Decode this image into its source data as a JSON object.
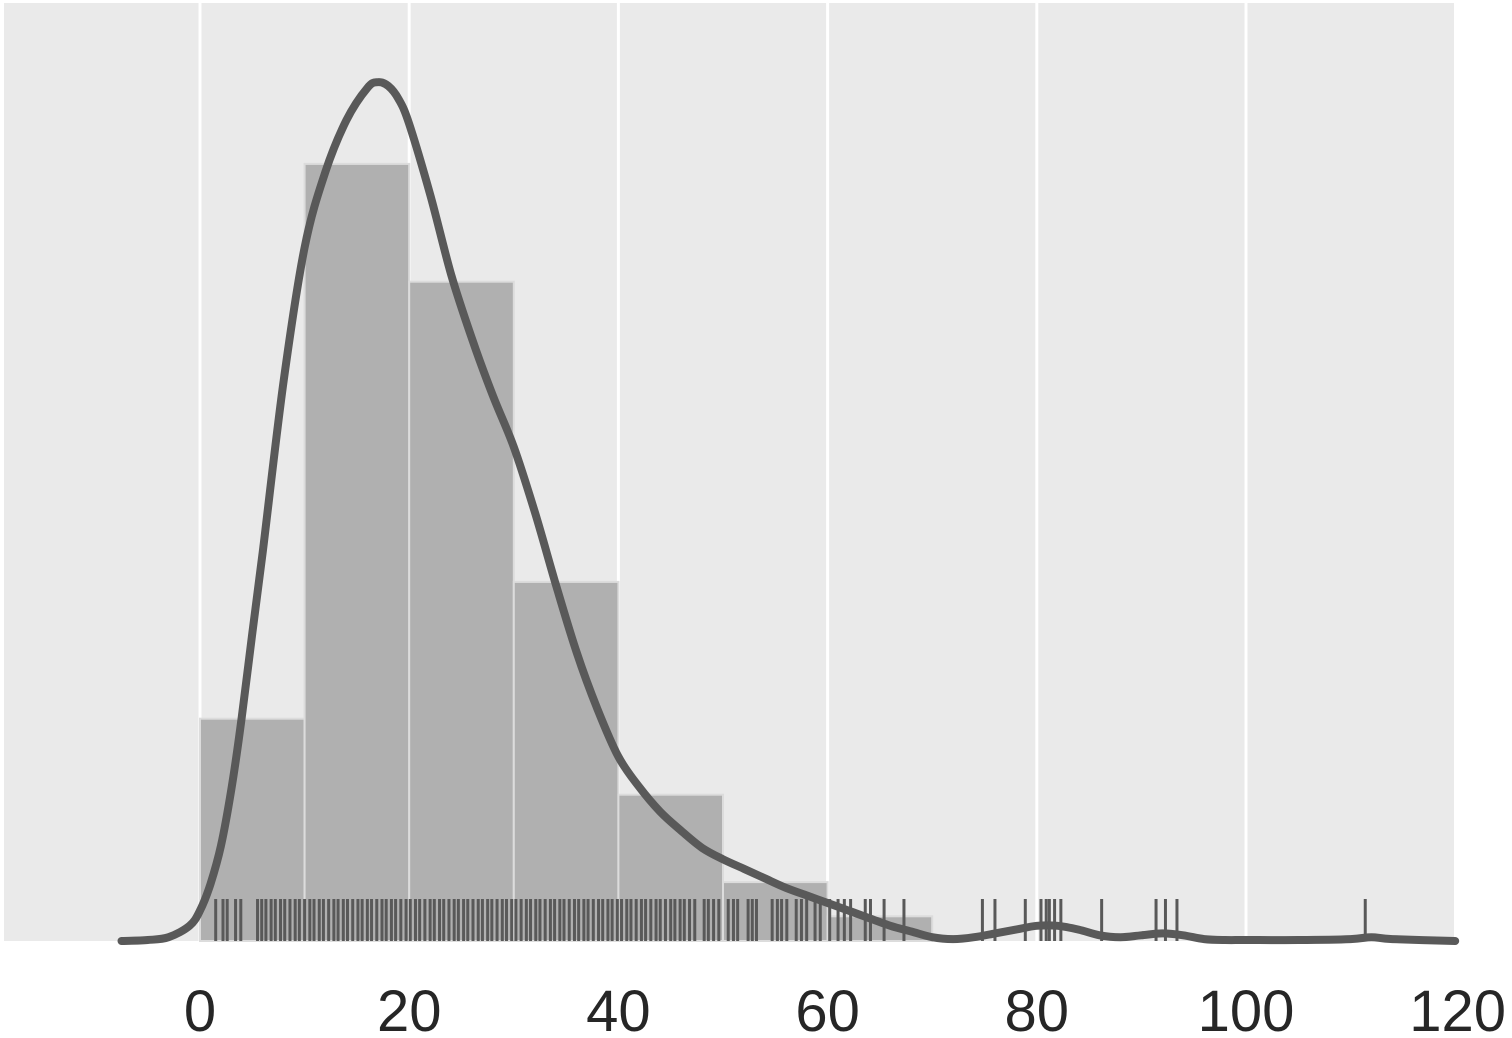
{
  "chart_data": {
    "type": "histogram",
    "title": "",
    "xlabel": "",
    "ylabel": "",
    "xlim": [
      -19,
      120
    ],
    "ylim": [
      0,
      0.045
    ],
    "grid": "vertical",
    "colors": {
      "background": "#eaeaea",
      "grid": "#ffffff",
      "bars": "#b0b0b0",
      "bar_edge": "#dcdcdc",
      "kde": "#595959",
      "rug": "#595959",
      "tick_text": "#262626"
    },
    "x_ticks": [
      0,
      20,
      40,
      60,
      80,
      100,
      120
    ],
    "x_tick_labels": [
      "0",
      "20",
      "40",
      "60",
      "80",
      "100",
      "120"
    ],
    "histogram": {
      "bin_edges": [
        0,
        10,
        20,
        30,
        40,
        50,
        60,
        70
      ],
      "densities": [
        0.0117,
        0.0409,
        0.0347,
        0.0189,
        0.0077,
        0.0031,
        0.0013
      ]
    },
    "kde": {
      "x": [
        -7.5,
        -5,
        -3,
        -1,
        0,
        1,
        2,
        3,
        4,
        5,
        6,
        8,
        10,
        12,
        14,
        16,
        17,
        18,
        19,
        20,
        22,
        24,
        26,
        28,
        30,
        32,
        34,
        36,
        38,
        40,
        42,
        44,
        46,
        48,
        50,
        52,
        54,
        56,
        58,
        60,
        62,
        64,
        66,
        68,
        70,
        72,
        74,
        76,
        78,
        80,
        82,
        84,
        86,
        88,
        90,
        92,
        94,
        96,
        98,
        100,
        105,
        110,
        112,
        114,
        120
      ],
      "y": [
        0.0,
        5e-05,
        0.0002,
        0.0008,
        0.0016,
        0.003,
        0.005,
        0.008,
        0.0118,
        0.0162,
        0.0205,
        0.0295,
        0.0365,
        0.0405,
        0.0432,
        0.0449,
        0.0452,
        0.045,
        0.0443,
        0.043,
        0.0393,
        0.0351,
        0.0317,
        0.0287,
        0.026,
        0.0226,
        0.0188,
        0.0152,
        0.0122,
        0.0097,
        0.0081,
        0.0068,
        0.0058,
        0.0049,
        0.0043,
        0.0038,
        0.0033,
        0.0028,
        0.0024,
        0.002,
        0.0016,
        0.0012,
        0.0008,
        0.0005,
        0.0002,
        0.0001,
        0.0002,
        0.0004,
        0.0006,
        0.0008,
        0.0008,
        0.0006,
        0.0003,
        0.0002,
        0.0003,
        0.0004,
        0.0003,
        0.0001,
        5e-05,
        5e-05,
        5e-05,
        0.0001,
        0.0002,
        0.0001,
        0.0
      ]
    },
    "rug": {
      "observations": [
        1.5,
        2.2,
        2.6,
        3.4,
        3.9,
        5.5,
        5.9,
        6.3,
        6.8,
        7.2,
        7.7,
        8.1,
        8.6,
        9.1,
        9.5,
        10.0,
        10.5,
        10.9,
        11.4,
        11.8,
        12.3,
        12.8,
        13.2,
        13.7,
        14.1,
        14.6,
        15.1,
        15.5,
        16.0,
        16.4,
        16.9,
        17.4,
        17.8,
        18.3,
        18.7,
        19.2,
        19.7,
        20.1,
        20.6,
        21.0,
        21.5,
        22.0,
        22.4,
        22.9,
        23.3,
        23.8,
        24.3,
        24.7,
        25.2,
        25.6,
        26.1,
        26.6,
        27.0,
        27.5,
        27.9,
        28.4,
        28.9,
        29.3,
        29.8,
        30.2,
        30.7,
        31.2,
        31.6,
        32.1,
        32.5,
        33.0,
        33.5,
        33.9,
        34.4,
        34.8,
        35.3,
        35.8,
        36.2,
        36.7,
        37.1,
        37.6,
        38.1,
        38.5,
        39.0,
        39.4,
        39.9,
        40.3,
        40.8,
        41.2,
        41.7,
        42.2,
        42.6,
        43.1,
        43.6,
        44.0,
        44.5,
        45.0,
        45.4,
        45.9,
        46.3,
        46.8,
        47.3,
        48.2,
        48.6,
        49.1,
        49.6,
        50.5,
        51.0,
        51.4,
        52.4,
        52.8,
        53.2,
        54.7,
        55.2,
        55.6,
        56.1,
        57.0,
        57.5,
        58.0,
        58.8,
        59.3,
        60.2,
        61.0,
        61.6,
        62.2,
        63.6,
        64.1,
        65.4,
        67.3,
        74.8,
        76.0,
        78.9,
        80.4,
        80.9,
        81.2,
        81.7,
        82.3,
        86.2,
        91.4,
        92.3,
        93.4,
        111.4
      ]
    }
  }
}
